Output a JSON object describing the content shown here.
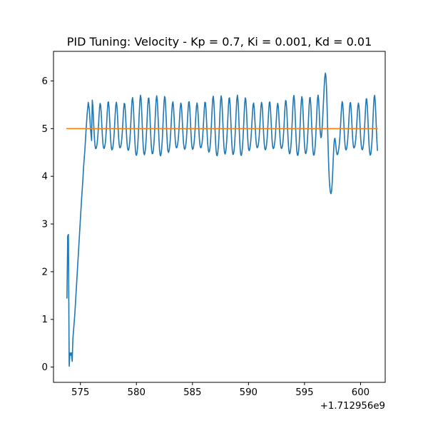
{
  "chart_data": {
    "type": "line",
    "title": "PID Tuning: Velocity - Kp = 0.7, Ki = 0.001, Kd = 0.01",
    "xlabel": "",
    "ylabel": "",
    "x_offset_label": "+1.712956e9",
    "xlim": [
      572.6,
      602.2
    ],
    "ylim": [
      -0.32,
      6.62
    ],
    "x_ticks": [
      575,
      580,
      585,
      590,
      595,
      600
    ],
    "x_tick_labels": [
      "575",
      "580",
      "585",
      "590",
      "595",
      "600"
    ],
    "y_ticks": [
      0,
      1,
      2,
      3,
      4,
      5,
      6
    ],
    "y_tick_labels": [
      "0",
      "1",
      "2",
      "3",
      "4",
      "5",
      "6"
    ],
    "grid": false,
    "legend": "none",
    "series": [
      {
        "color": "#1f77b4",
        "x": [
          573.8,
          573.87,
          573.93,
          574.0,
          574.07,
          574.13,
          574.2,
          574.27,
          574.33,
          574.4,
          574.5,
          574.6,
          574.7,
          574.8,
          574.9,
          575.0,
          575.1,
          575.2,
          575.3,
          575.4,
          575.5,
          575.6,
          575.7,
          575.8,
          575.9,
          576.0
        ],
        "y": [
          1.45,
          2.75,
          2.78,
          0.02,
          0.3,
          0.25,
          0.3,
          0.12,
          0.6,
          0.8,
          1.1,
          1.5,
          1.9,
          2.3,
          2.7,
          3.1,
          3.5,
          3.85,
          4.25,
          4.55,
          4.95,
          5.3,
          5.55,
          5.4,
          5.0,
          4.75
        ]
      },
      {
        "color": "#ff7f0e",
        "x": [
          573.8,
          601.5
        ],
        "y": [
          5.0,
          5.0
        ]
      }
    ]
  }
}
